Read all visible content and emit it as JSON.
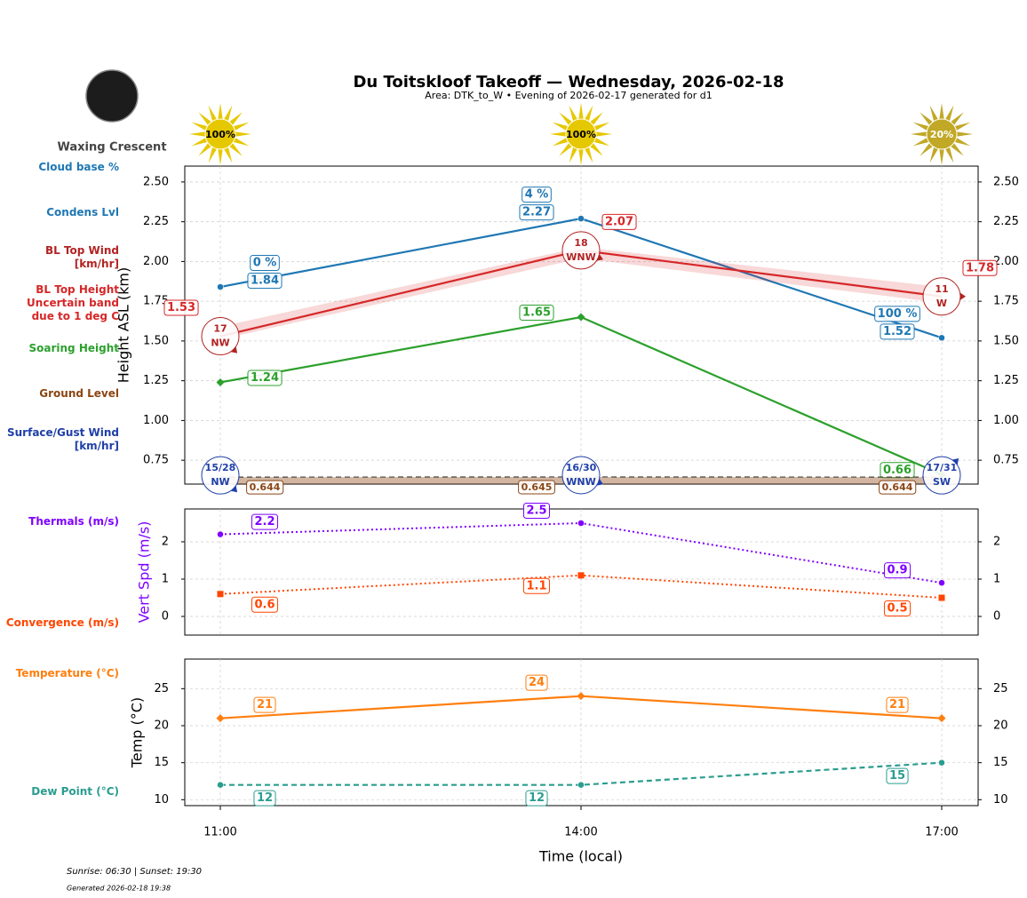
{
  "title": "Du Toitskloof Takeoff — Wednesday, 2026-02-18",
  "subtitle": "Area: DTK_to_W • Evening of 2026-02-17 generated for d1",
  "moon_phase": "Waxing Crescent",
  "sun_cover": {
    "values": [
      100,
      100,
      20
    ],
    "value_labels": [
      "100%",
      "100%",
      "20%"
    ]
  },
  "footer": {
    "sun_times": "Sunrise: 06:30 | Sunset: 19:30",
    "generated": "Generated 2026-02-18 19:38"
  },
  "chart_data": [
    {
      "type": "line",
      "ylabel": "Height ASL (km)",
      "ylim": [
        0.6,
        2.6
      ],
      "yticks": [
        0.75,
        {
          "value": 1,
          "label": "1.00"
        },
        1.25,
        {
          "value": 1.5,
          "label": "1.50"
        },
        1.75,
        {
          "value": 2,
          "label": "2.00"
        },
        2.25,
        {
          "value": 2.5,
          "label": "2.50"
        }
      ],
      "grid": true,
      "cloud_base": {
        "name": "Cloud base %",
        "color": "#1f77b4",
        "values": [
          0,
          4,
          100
        ],
        "value_labels": [
          "0 %",
          "4 %",
          "100 %"
        ]
      },
      "series": [
        {
          "name": "Condens Lvl",
          "color": "#1f77b4",
          "values": [
            1.84,
            2.27,
            1.52
          ],
          "marker": "circle"
        },
        {
          "name": "BL Top Height",
          "color": "#d62728",
          "values": [
            1.53,
            2.07,
            1.78
          ],
          "band": {
            "name": "Uncertain band due to 1 deg C",
            "low": [
              1.51,
              2.02,
              1.74
            ],
            "high": [
              1.59,
              2.09,
              1.84
            ]
          }
        },
        {
          "name": "Soaring Height",
          "color": "#2ca02c",
          "values": [
            1.24,
            1.65,
            0.66
          ],
          "marker": "diamond"
        },
        {
          "name": "Ground Level",
          "color": "#8b4513",
          "values": [
            0.644,
            0.645,
            0.644
          ],
          "dash": "dashed",
          "fill": true
        }
      ],
      "winds": [
        {
          "name": "BL Top Wind [km/hr]",
          "color": "#b22222",
          "speed": [
            17,
            18,
            11
          ],
          "direction": [
            "NW",
            "WNW",
            "W"
          ]
        },
        {
          "name": "Surface/Gust Wind [km/hr]",
          "color": "#1f3fa8",
          "speed": [
            15,
            16,
            17
          ],
          "gust": [
            28,
            30,
            31
          ],
          "value_labels": [
            "15/28",
            "16/30",
            "17/31"
          ],
          "direction": [
            "NW",
            "WNW",
            "SW"
          ]
        }
      ]
    },
    {
      "type": "line",
      "ylabel": "Vert Spd (m/s)",
      "ylabel_color": "#7f00ff",
      "ylim": [
        -0.5,
        2.88
      ],
      "yticks": [
        0,
        1,
        2
      ],
      "grid": true,
      "series": [
        {
          "name": "Thermals (m/s)",
          "color": "#7f00ff",
          "values": [
            2.2,
            2.5,
            0.9
          ],
          "dash": "dotted",
          "marker": "circle"
        },
        {
          "name": "Convergence (m/s)",
          "color": "#ff4500",
          "values": [
            0.6,
            1.1,
            0.5
          ],
          "dash": "dotted",
          "marker": "square"
        }
      ]
    },
    {
      "type": "line",
      "ylabel": "Temp (°C)",
      "xlabel": "Time (local)",
      "categories": [
        "11:00",
        "14:00",
        "17:00"
      ],
      "ylim": [
        9.2,
        29
      ],
      "yticks": [
        10,
        15,
        20,
        25
      ],
      "grid": true,
      "series": [
        {
          "name": "Temperature (°C)",
          "color": "#ff7f0e",
          "values": [
            21,
            24,
            21
          ],
          "marker": "diamond"
        },
        {
          "name": "Dew Point (°C)",
          "color": "#2a9d8f",
          "values": [
            12,
            12,
            15
          ],
          "dash": "dashed",
          "marker": "circle"
        }
      ]
    }
  ]
}
